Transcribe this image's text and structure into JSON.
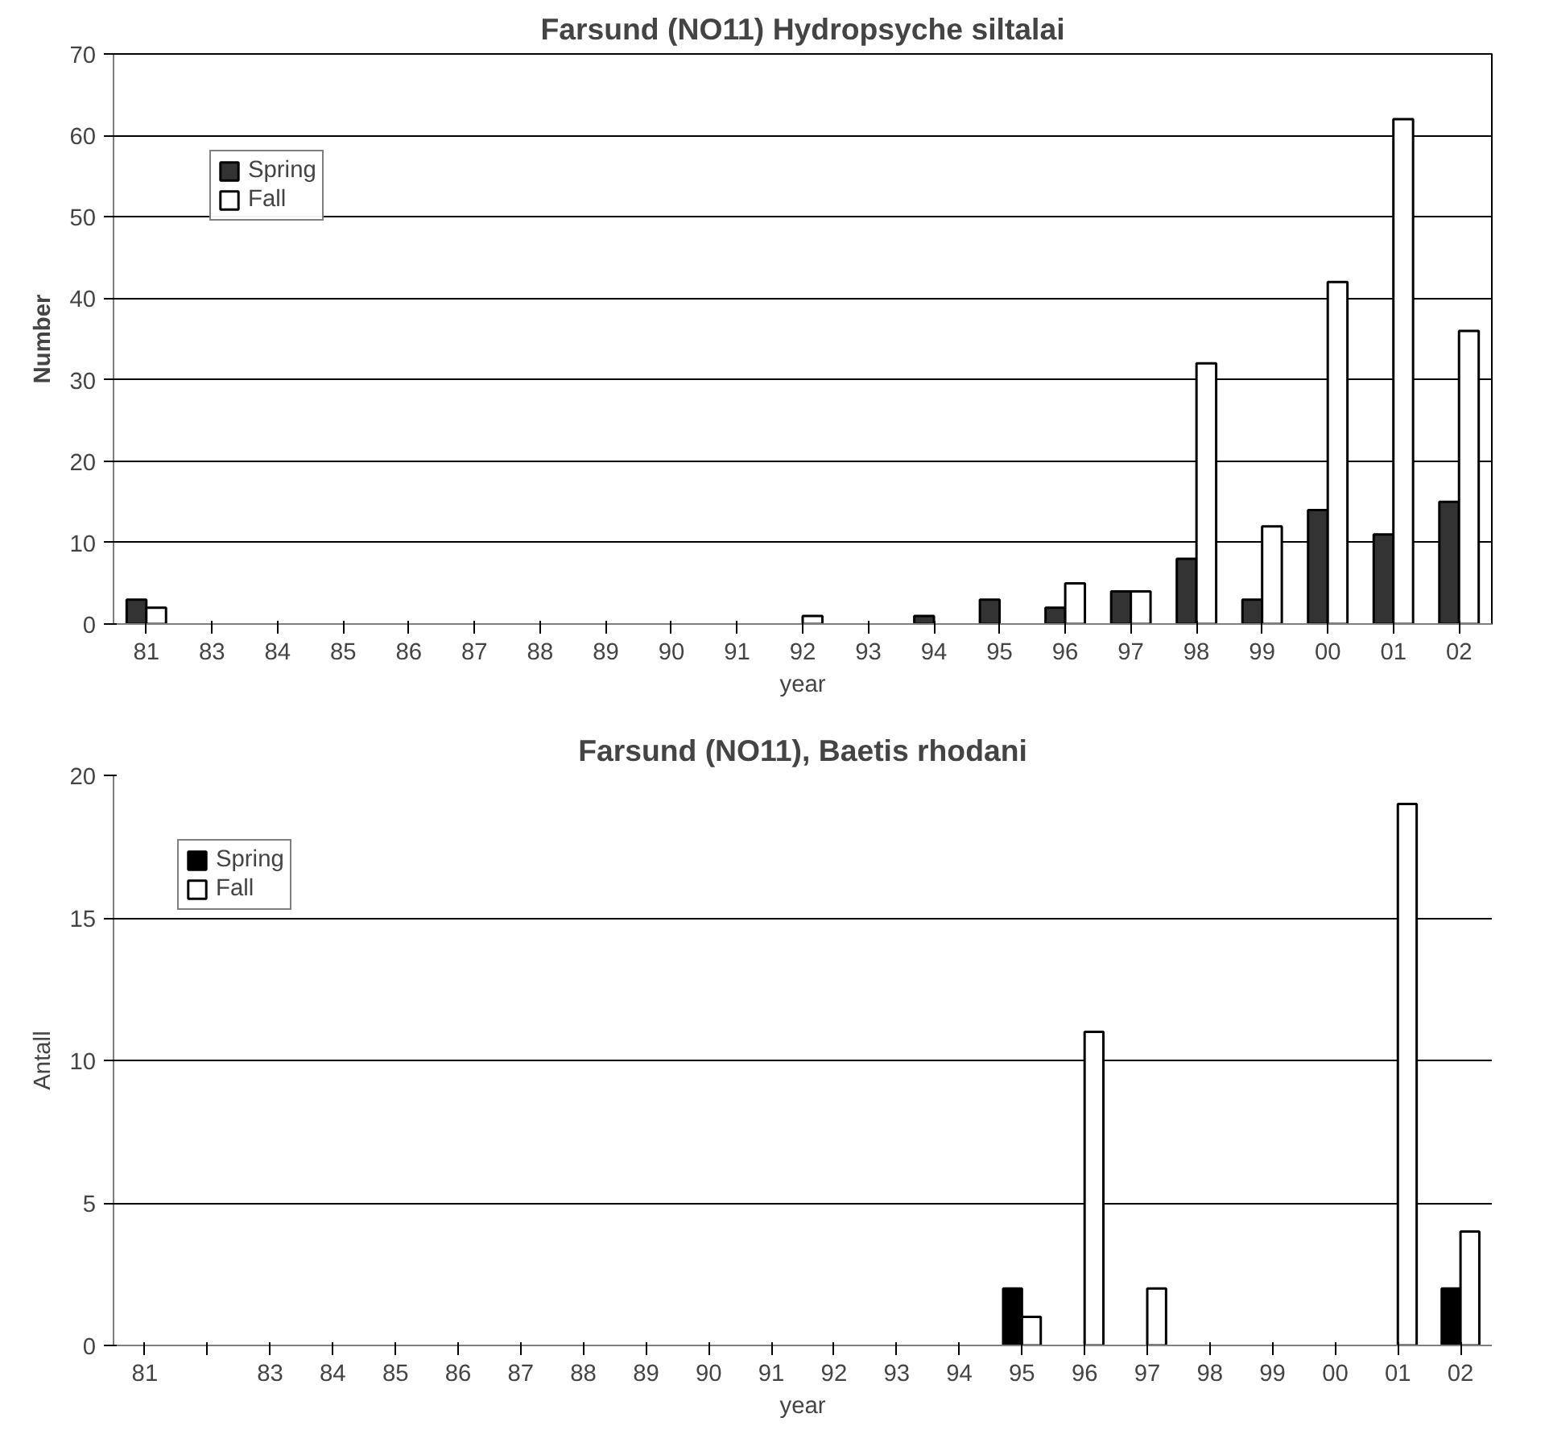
{
  "chart_data": [
    {
      "type": "bar",
      "title": "Farsund (NO11) Hydropsyche siltalai",
      "xlabel": "year",
      "ylabel": "Number",
      "categories": [
        "81",
        "83",
        "84",
        "85",
        "86",
        "87",
        "88",
        "89",
        "90",
        "91",
        "92",
        "93",
        "94",
        "95",
        "96",
        "97",
        "98",
        "99",
        "00",
        "01",
        "02"
      ],
      "series": [
        {
          "name": "Spring",
          "color": "#333333",
          "values": [
            3,
            0,
            0,
            0,
            0,
            0,
            0,
            0,
            0,
            0,
            0,
            0,
            1,
            3,
            2,
            4,
            8,
            3,
            14,
            11,
            15
          ]
        },
        {
          "name": "Fall",
          "color": "#ffffff",
          "values": [
            2,
            0,
            0,
            0,
            0,
            0,
            0,
            0,
            0,
            0,
            1,
            0,
            0,
            0,
            5,
            4,
            32,
            12,
            42,
            62,
            36
          ]
        }
      ],
      "ylim": [
        0,
        70
      ],
      "yticks": [
        0,
        10,
        20,
        30,
        40,
        50,
        60,
        70
      ],
      "grid": "y",
      "legend": "top left"
    },
    {
      "type": "bar",
      "title": "Farsund (NO11), Baetis rhodani",
      "xlabel": "year",
      "ylabel": "Antall",
      "categories": [
        "81",
        null,
        "83",
        "84",
        "85",
        "86",
        "87",
        "88",
        "89",
        "90",
        "91",
        "92",
        "93",
        "94",
        "95",
        "96",
        "97",
        "98",
        "99",
        "00",
        "01",
        "02"
      ],
      "series": [
        {
          "name": "Spring",
          "color": "#000000",
          "values": [
            0,
            0,
            0,
            0,
            0,
            0,
            0,
            0,
            0,
            0,
            0,
            0,
            0,
            0,
            2,
            0,
            0,
            0,
            0,
            0,
            0,
            2
          ]
        },
        {
          "name": "Fall",
          "color": "#ffffff",
          "values": [
            0,
            0,
            0,
            0,
            0,
            0,
            0,
            0,
            0,
            0,
            0,
            0,
            0,
            0,
            1,
            11,
            2,
            0,
            0,
            0,
            19,
            4
          ]
        }
      ],
      "ylim": [
        0,
        20
      ],
      "yticks": [
        0,
        5,
        10,
        15,
        20
      ],
      "grid": "y",
      "legend": "top left"
    }
  ]
}
